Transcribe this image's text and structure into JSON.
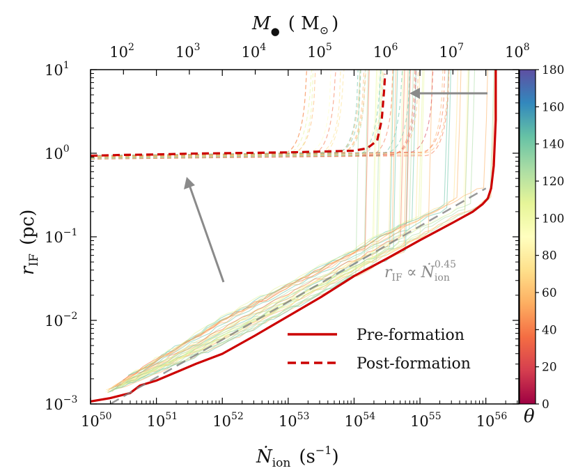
{
  "chart_data": {
    "type": "line",
    "xlabel": "Ṅion (s⁻¹)",
    "xlabel_main": "Ṅ",
    "xlabel_sub": "ion",
    "xlabel_units": "(s",
    "xlabel_units_exp": "−1",
    "xlabel_units_close": ")",
    "ylabel_main": "r",
    "ylabel_sub": "IF",
    "ylabel_units": "(pc)",
    "top_label_main": "M",
    "top_label_symbol": "●",
    "top_label_units": "( M",
    "top_label_units_sub": "⊙",
    "top_label_close": ")",
    "x_scale": "log",
    "y_scale": "log",
    "xlim_log10": [
      50,
      56.5
    ],
    "ylim_log10": [
      -3,
      1
    ],
    "x_ticks": [
      {
        "base": "10",
        "exp": "50",
        "log": 50
      },
      {
        "base": "10",
        "exp": "51",
        "log": 51
      },
      {
        "base": "10",
        "exp": "52",
        "log": 52
      },
      {
        "base": "10",
        "exp": "53",
        "log": 53
      },
      {
        "base": "10",
        "exp": "54",
        "log": 54
      },
      {
        "base": "10",
        "exp": "55",
        "log": 55
      },
      {
        "base": "10",
        "exp": "56",
        "log": 56
      }
    ],
    "y_ticks": [
      {
        "base": "10",
        "exp": "−3",
        "log": -3
      },
      {
        "base": "10",
        "exp": "−2",
        "log": -2
      },
      {
        "base": "10",
        "exp": "−1",
        "log": -1
      },
      {
        "base": "10",
        "exp": "0",
        "log": 0
      },
      {
        "base": "10",
        "exp": "1",
        "log": 1
      }
    ],
    "top_ticks": [
      {
        "base": "10",
        "exp": "2",
        "x_log": 50.5
      },
      {
        "base": "10",
        "exp": "3",
        "x_log": 51.5
      },
      {
        "base": "10",
        "exp": "4",
        "x_log": 52.5
      },
      {
        "base": "10",
        "exp": "5",
        "x_log": 53.5
      },
      {
        "base": "10",
        "exp": "6",
        "x_log": 54.5
      },
      {
        "base": "10",
        "exp": "7",
        "x_log": 55.5
      },
      {
        "base": "10",
        "exp": "8",
        "x_log": 56.5
      }
    ],
    "colorbar": {
      "label": "θ",
      "range": [
        0,
        180
      ],
      "ticks": [
        "0",
        "20",
        "40",
        "60",
        "80",
        "100",
        "120",
        "140",
        "160",
        "180"
      ],
      "colors": [
        "#9e0142",
        "#d53e4f",
        "#f46d43",
        "#fdae61",
        "#fee08b",
        "#ffffbf",
        "#e6f598",
        "#abdda4",
        "#66c2a5",
        "#3288bd",
        "#5e4fa2"
      ]
    },
    "series": [
      {
        "name": "Pre-formation",
        "style": "solid",
        "color": "#cc0000",
        "x_log": [
          50.0,
          50.3,
          50.6,
          50.75,
          51.0,
          51.3,
          51.6,
          52.0,
          52.5,
          53.0,
          53.5,
          54.0,
          54.5,
          55.0,
          55.5,
          55.8,
          55.95,
          56.03,
          56.08,
          56.12,
          56.15,
          56.15
        ],
        "y_log": [
          -2.97,
          -2.93,
          -2.87,
          -2.78,
          -2.72,
          -2.62,
          -2.52,
          -2.4,
          -2.18,
          -1.95,
          -1.72,
          -1.47,
          -1.26,
          -1.04,
          -0.83,
          -0.7,
          -0.61,
          -0.54,
          -0.42,
          -0.15,
          0.4,
          1.0
        ]
      },
      {
        "name": "Post-formation",
        "style": "dashed",
        "color": "#cc0000",
        "x_log": [
          50.0,
          50.5,
          51.0,
          51.5,
          52.0,
          52.5,
          53.0,
          53.5,
          54.0,
          54.2,
          54.35,
          54.42,
          54.46,
          54.47
        ],
        "y_log": [
          -0.03,
          -0.02,
          -0.015,
          -0.005,
          0.0,
          0.005,
          0.01,
          0.02,
          0.03,
          0.06,
          0.15,
          0.4,
          0.8,
          0.95
        ]
      },
      {
        "name": "fit",
        "style": "dashed",
        "color": "#808080",
        "x_log": [
          50.3,
          56.0
        ],
        "y_log": [
          -3.0,
          -0.42
        ]
      }
    ],
    "annotation": {
      "main": "r",
      "sub": "IF",
      "prop": "∝",
      "n": "Ṅ",
      "n_sub": "ion",
      "exp": "0.45"
    },
    "legend": {
      "placement": "lower-right"
    }
  }
}
